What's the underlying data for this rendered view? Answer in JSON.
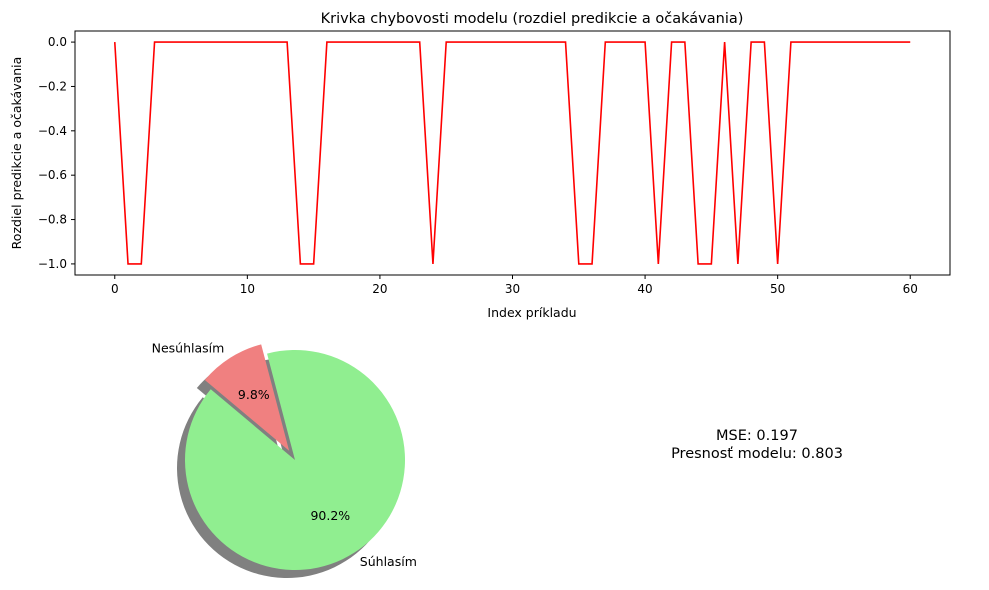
{
  "chart_data": [
    {
      "type": "line",
      "title": "Krivka chybovosti modelu (rozdiel predikcie a očakávania)",
      "xlabel": "Index príkladu",
      "ylabel": "Rozdiel predikcie a očakávania",
      "xlim": [
        -3,
        63
      ],
      "ylim": [
        -1.05,
        0.05
      ],
      "xticks": [
        0,
        10,
        20,
        30,
        40,
        50,
        60
      ],
      "yticks": [
        0.0,
        -0.2,
        -0.4,
        -0.6,
        -0.8,
        -1.0
      ],
      "xtick_labels": [
        "0",
        "10",
        "20",
        "30",
        "40",
        "50",
        "60"
      ],
      "ytick_labels": [
        "0.0",
        "−0.2",
        "−0.4",
        "−0.6",
        "−0.8",
        "−1.0"
      ],
      "grid": false,
      "line_color": "#ff0000",
      "x": [
        0,
        1,
        2,
        3,
        4,
        5,
        6,
        7,
        8,
        9,
        10,
        11,
        12,
        13,
        14,
        15,
        16,
        17,
        18,
        19,
        20,
        21,
        22,
        23,
        24,
        25,
        26,
        27,
        28,
        29,
        30,
        31,
        32,
        33,
        34,
        35,
        36,
        37,
        38,
        39,
        40,
        41,
        42,
        43,
        44,
        45,
        46,
        47,
        48,
        49,
        50,
        51,
        52,
        53,
        54,
        55,
        56,
        57,
        58,
        59,
        60
      ],
      "values": [
        0,
        -1,
        -1,
        0,
        0,
        0,
        0,
        0,
        0,
        0,
        0,
        0,
        0,
        0,
        -1,
        -1,
        0,
        0,
        0,
        0,
        0,
        0,
        0,
        0,
        -1,
        0,
        0,
        0,
        0,
        0,
        0,
        0,
        0,
        0,
        0,
        -1,
        -1,
        0,
        0,
        0,
        0,
        -1,
        0,
        0,
        -1,
        -1,
        0,
        -1,
        0,
        0,
        -1,
        0,
        0,
        0,
        0,
        0,
        0,
        0,
        0,
        0,
        0
      ]
    },
    {
      "type": "pie",
      "categories": [
        "Súhlasím",
        "Nesúhlasím"
      ],
      "values": [
        90.2,
        9.8
      ],
      "pct_labels": [
        "90.2%",
        "9.8%"
      ],
      "colors": [
        "#90ee90",
        "#f08080"
      ],
      "explode": [
        0,
        0.1
      ],
      "shadow": true,
      "start_angle_deg": 140
    }
  ],
  "metrics": {
    "mse_label": "MSE: 0.197",
    "accuracy_label": "Presnosť modelu: 0.803"
  }
}
